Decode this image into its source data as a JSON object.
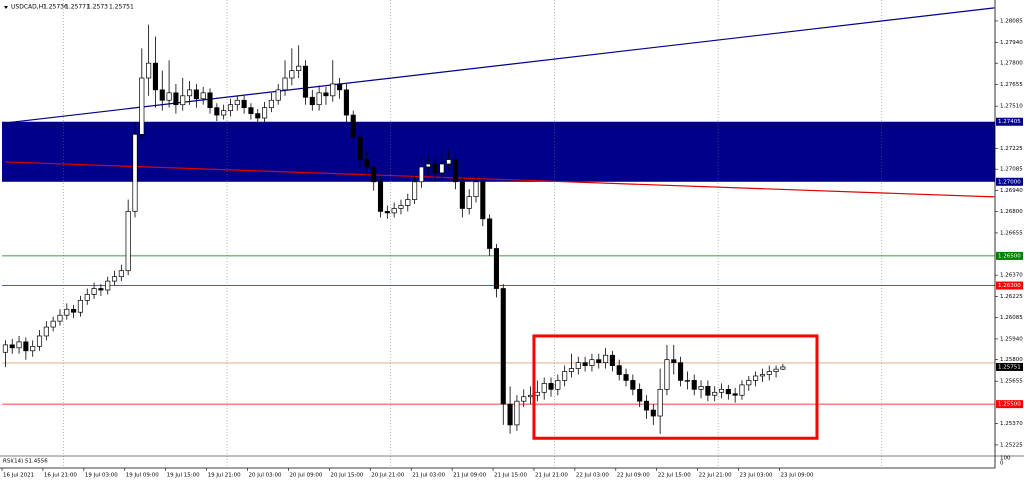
{
  "chart_data": {
    "type": "candlestick",
    "symbol": "USDCAD,H1",
    "categories": [
      "16 Jul 2021",
      null,
      null,
      null,
      null,
      null,
      "16 Jul 21:00",
      null,
      null,
      null,
      null,
      null,
      "19 Jul 03:00",
      null,
      null,
      null,
      null,
      null,
      "19 Jul 09:00",
      null,
      null,
      null,
      null,
      null,
      "19 Jul 15:00",
      null,
      null,
      null,
      null,
      null,
      "19 Jul 21:00",
      null,
      null,
      null,
      null,
      null,
      "20 Jul 03:00",
      null,
      null,
      null,
      null,
      null,
      "20 Jul 09:00",
      null,
      null,
      null,
      null,
      null,
      "20 Jul 15:00",
      null,
      null,
      null,
      null,
      null,
      "20 Jul 21:00",
      null,
      null,
      null,
      null,
      null,
      "21 Jul 03:00",
      null,
      null,
      null,
      null,
      null,
      "21 Jul 09:00",
      null,
      null,
      null,
      null,
      null,
      "21 Jul 15:00",
      null,
      null,
      null,
      null,
      null,
      "21 Jul 21:00",
      null,
      null,
      null,
      null,
      null,
      "22 Jul 03:00",
      null,
      null,
      null,
      null,
      null,
      "22 Jul 09:00",
      null,
      null,
      null,
      null,
      null,
      "22 Jul 15:00",
      null,
      null,
      null,
      null,
      null,
      "22 Jul 21:00",
      null,
      null,
      null,
      null,
      null,
      "23 Jul 03:00",
      null,
      null,
      null,
      null,
      null,
      "23 Jul 09:00"
    ],
    "open": [
      1.2585,
      1.259,
      1.2588,
      1.2592,
      1.2586,
      1.2589,
      1.2596,
      1.2602,
      1.2606,
      1.261,
      1.2614,
      1.2612,
      1.262,
      1.2624,
      1.2628,
      1.2627,
      1.2633,
      1.2636,
      1.264,
      1.268,
      1.2732,
      1.277,
      1.278,
      1.2762,
      1.2755,
      1.276,
      1.2752,
      1.2758,
      1.2762,
      1.2756,
      1.276,
      1.275,
      1.2745,
      1.2748,
      1.2752,
      1.2755,
      1.275,
      1.2746,
      1.2743,
      1.275,
      1.2755,
      1.2762,
      1.277,
      1.2775,
      1.2778,
      1.2757,
      1.2752,
      1.276,
      1.2758,
      1.2766,
      1.2762,
      1.2745,
      1.273,
      1.2715,
      1.271,
      1.27,
      1.268,
      1.2679,
      1.2682,
      1.2684,
      1.2688,
      1.27,
      1.271,
      1.2712,
      1.2706,
      1.2712,
      1.2715,
      1.27,
      1.2682,
      1.269,
      1.27,
      1.2675,
      1.2655,
      1.2628,
      1.255,
      1.2536,
      1.2552,
      1.2555,
      1.2556,
      1.2558,
      1.2564,
      1.256,
      1.2566,
      1.2572,
      1.2574,
      1.2578,
      1.2576,
      1.258,
      1.2578,
      1.2583,
      1.2576,
      1.257,
      1.2566,
      1.256,
      1.2552,
      1.2546,
      1.2542,
      1.256,
      1.258,
      1.2578,
      1.2566,
      1.2566,
      1.256,
      1.2562,
      1.2556,
      1.2558,
      1.256,
      1.2557,
      1.2556,
      1.2563,
      1.2566,
      1.2569,
      1.257,
      1.2572,
      1.25736
    ],
    "high": [
      1.2593,
      1.2594,
      1.2596,
      1.2595,
      1.2593,
      1.26,
      1.2606,
      1.2609,
      1.2614,
      1.2618,
      1.2617,
      1.2623,
      1.2628,
      1.2632,
      1.2631,
      1.2636,
      1.264,
      1.2644,
      1.2688,
      1.274,
      1.279,
      1.2806,
      1.2798,
      1.2775,
      1.2782,
      1.2766,
      1.277,
      1.2768,
      1.2766,
      1.2764,
      1.2763,
      1.2753,
      1.2752,
      1.2756,
      1.2758,
      1.2758,
      1.2753,
      1.2749,
      1.2754,
      1.276,
      1.2766,
      1.2782,
      1.279,
      1.2792,
      1.2782,
      1.2762,
      1.2765,
      1.2764,
      1.2782,
      1.277,
      1.2766,
      1.2748,
      1.2734,
      1.272,
      1.2714,
      1.2704,
      1.2684,
      1.2686,
      1.2688,
      1.2692,
      1.2704,
      1.2716,
      1.2718,
      1.2716,
      1.272,
      1.2722,
      1.272,
      1.2704,
      1.2695,
      1.2704,
      1.2703,
      1.2678,
      1.2658,
      1.2631,
      1.2562,
      1.2556,
      1.256,
      1.2562,
      1.2566,
      1.2568,
      1.2568,
      1.257,
      1.2576,
      1.2584,
      1.2582,
      1.2582,
      1.2584,
      1.2584,
      1.2588,
      1.2586,
      1.258,
      1.2574,
      1.257,
      1.2564,
      1.2556,
      1.255,
      1.2574,
      1.259,
      1.259,
      1.2582,
      1.2572,
      1.257,
      1.2566,
      1.2566,
      1.2562,
      1.2564,
      1.2563,
      1.2561,
      1.2566,
      1.2569,
      1.2572,
      1.2574,
      1.2576,
      1.2576,
      1.25771
    ],
    "low": [
      1.2575,
      1.2584,
      1.2584,
      1.258,
      1.2582,
      1.2586,
      1.2593,
      1.2599,
      1.2603,
      1.2607,
      1.2608,
      1.2609,
      1.2617,
      1.2621,
      1.2623,
      1.2624,
      1.263,
      1.2633,
      1.2637,
      1.2676,
      1.2728,
      1.2758,
      1.275,
      1.2748,
      1.275,
      1.2746,
      1.2748,
      1.2752,
      1.275,
      1.2752,
      1.2746,
      1.2741,
      1.2742,
      1.2744,
      1.2748,
      1.2746,
      1.2742,
      1.2739,
      1.274,
      1.2747,
      1.2752,
      1.2758,
      1.2765,
      1.277,
      1.2752,
      1.2748,
      1.2748,
      1.2752,
      1.2754,
      1.2756,
      1.274,
      1.2726,
      1.271,
      1.2704,
      1.2694,
      1.2676,
      1.2675,
      1.2676,
      1.2678,
      1.268,
      1.2685,
      1.2696,
      1.2704,
      1.27,
      1.2702,
      1.2708,
      1.2695,
      1.2676,
      1.2678,
      1.2686,
      1.267,
      1.265,
      1.2622,
      1.2536,
      1.253,
      1.2532,
      1.2548,
      1.255,
      1.2552,
      1.2553,
      1.2555,
      1.2556,
      1.2562,
      1.2568,
      1.257,
      1.2572,
      1.2572,
      1.2574,
      1.2574,
      1.2572,
      1.2566,
      1.2562,
      1.2556,
      1.2548,
      1.254,
      1.2536,
      1.253,
      1.2556,
      1.257,
      1.2562,
      1.256,
      1.2556,
      1.2554,
      1.2552,
      1.2552,
      1.2554,
      1.2553,
      1.2551,
      1.2553,
      1.2559,
      1.2562,
      1.2565,
      1.2566,
      1.2568,
      1.2573
    ],
    "close": [
      1.259,
      1.2588,
      1.2592,
      1.2586,
      1.2589,
      1.2596,
      1.2602,
      1.2606,
      1.261,
      1.2614,
      1.2612,
      1.262,
      1.2624,
      1.2628,
      1.2627,
      1.2633,
      1.2636,
      1.264,
      1.268,
      1.2732,
      1.277,
      1.278,
      1.2762,
      1.2755,
      1.276,
      1.2752,
      1.2758,
      1.2762,
      1.2756,
      1.276,
      1.275,
      1.2745,
      1.2748,
      1.2752,
      1.2755,
      1.275,
      1.2746,
      1.2743,
      1.275,
      1.2755,
      1.2762,
      1.277,
      1.2775,
      1.2778,
      1.2757,
      1.2752,
      1.276,
      1.2758,
      1.2766,
      1.2762,
      1.2745,
      1.273,
      1.2715,
      1.271,
      1.27,
      1.268,
      1.2679,
      1.2682,
      1.2684,
      1.2688,
      1.27,
      1.271,
      1.2712,
      1.2706,
      1.2712,
      1.2715,
      1.27,
      1.2682,
      1.269,
      1.27,
      1.2675,
      1.2655,
      1.2628,
      1.255,
      1.2536,
      1.2552,
      1.2555,
      1.2556,
      1.2558,
      1.2564,
      1.256,
      1.2566,
      1.2572,
      1.2574,
      1.2578,
      1.2576,
      1.258,
      1.2578,
      1.2583,
      1.2576,
      1.257,
      1.2566,
      1.256,
      1.2552,
      1.2546,
      1.2542,
      1.256,
      1.258,
      1.2578,
      1.2566,
      1.2566,
      1.256,
      1.2562,
      1.2556,
      1.2558,
      1.256,
      1.2557,
      1.2556,
      1.2563,
      1.2566,
      1.2569,
      1.257,
      1.2572,
      1.25736,
      1.25751
    ],
    "up_color": "#ffffff",
    "down_color": "#000000",
    "ylim": [
      1.25157,
      1.28206
    ],
    "yticks": [
      1.28085,
      {
        "value": 1.2794,
        "label": "1.27940"
      },
      {
        "value": 1.278,
        "label": "1.27800"
      },
      1.27655,
      {
        "value": 1.2751,
        "label": "1.27510"
      },
      1.27225,
      1.27085,
      {
        "value": 1.2694,
        "label": "1.26940"
      },
      {
        "value": 1.268,
        "label": "1.26800"
      },
      1.26655,
      {
        "value": 1.2637,
        "label": "1.26370"
      },
      1.26225,
      1.26085,
      {
        "value": 1.2594,
        "label": "1.25940"
      },
      {
        "value": 1.258,
        "label": "1.25800"
      },
      1.25655,
      {
        "value": 1.2537,
        "label": "1.25370"
      },
      1.25225
    ],
    "xgrid": [
      9,
      33,
      57,
      81,
      105,
      129
    ],
    "zone": {
      "color": "#00008b",
      "from": {
        "value": 1.27,
        "label": "1.27000"
      },
      "to": 1.27405
    },
    "levels": [
      {
        "value": 1.265,
        "label": "1.26500",
        "color": "#007f00"
      },
      {
        "value": 1.263,
        "label": "1.26300",
        "color": "#ff0000"
      },
      {
        "value": 1.255,
        "label": "1.25500",
        "color": "#ff0000"
      },
      {
        "value": 1.25778,
        "color": "#e8a070"
      }
    ],
    "trendlines": [
      {
        "color": "#00008b",
        "x": [
          0,
          145
        ],
        "y": [
          1.27397,
          1.28173
        ]
      },
      {
        "color": "#e00000",
        "x": [
          0,
          145
        ],
        "y": [
          1.27134,
          1.26898
        ]
      }
    ],
    "box": {
      "color": "#ff0000",
      "x": [
        77.5,
        119
      ],
      "y": [
        1.2527,
        1.2596
      ]
    },
    "indicator": {
      "label": "RSI(14) 51.4556",
      "ticks": [
        100,
        0
      ]
    }
  }
}
